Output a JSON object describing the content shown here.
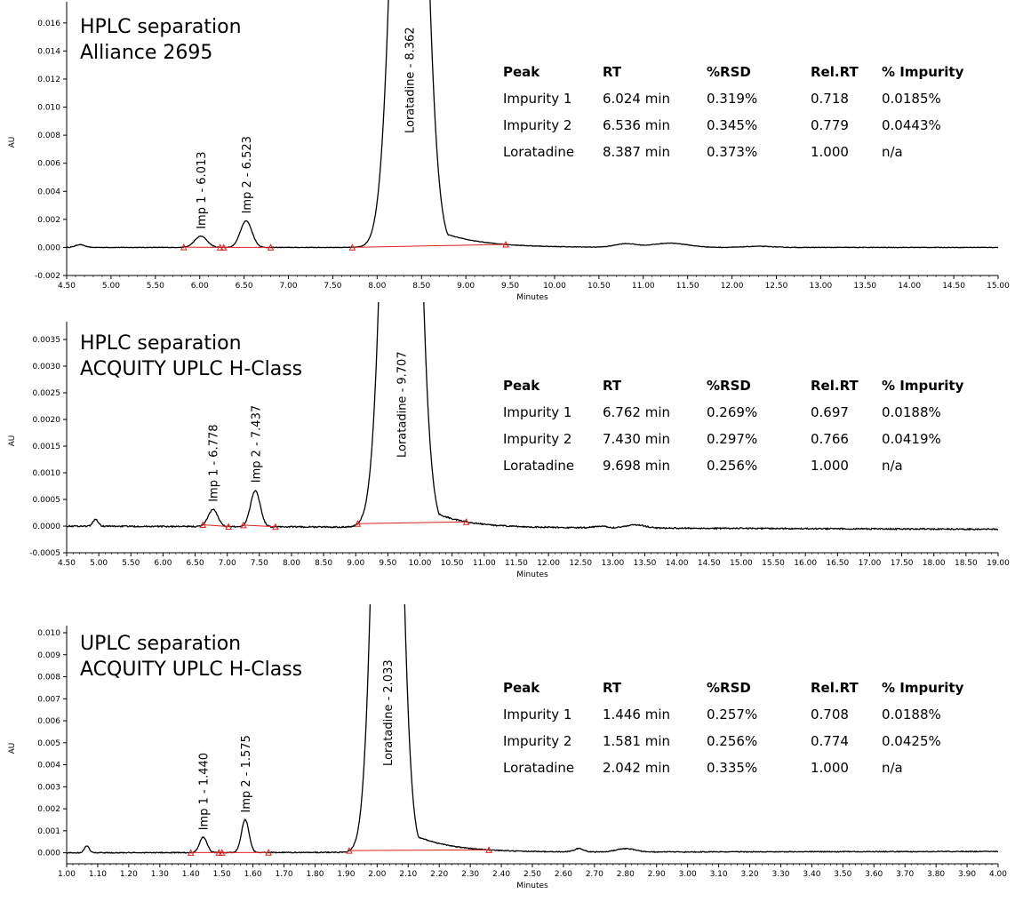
{
  "chart_data": [
    {
      "type": "line",
      "title_lines": [
        "HPLC separation",
        "Alliance 2695"
      ],
      "xlabel": "Minutes",
      "ylabel": "AU",
      "xlim": [
        4.5,
        15.0
      ],
      "ylim": [
        -0.002,
        0.017
      ],
      "x_ticks": [
        "4.50",
        "5.00",
        "5.50",
        "6.00",
        "6.50",
        "7.00",
        "7.50",
        "8.00",
        "8.50",
        "9.00",
        "9.50",
        "10.00",
        "10.50",
        "11.00",
        "11.50",
        "12.00",
        "12.50",
        "13.00",
        "13.50",
        "14.00",
        "14.50",
        "15.00"
      ],
      "y_ticks": [
        "-0.002",
        "0.000",
        "0.002",
        "0.004",
        "0.006",
        "0.008",
        "0.010",
        "0.012",
        "0.014",
        "0.016"
      ],
      "peaks": [
        {
          "label": "Imp 1 - 6.013",
          "rt": 6.013,
          "height": 0.0008,
          "width": 0.07
        },
        {
          "label": "Imp 2 - 6.523",
          "rt": 6.523,
          "height": 0.0019,
          "width": 0.065
        },
        {
          "label": "Loratadine - 8.362",
          "rt": 8.362,
          "height": 0.06,
          "width": 0.15,
          "tail": 0.45
        }
      ],
      "minor_peaks": [
        {
          "rt": 4.65,
          "height": 0.0002,
          "width": 0.05
        },
        {
          "rt": 10.8,
          "height": 0.00025,
          "width": 0.12
        },
        {
          "rt": 11.3,
          "height": 0.0003,
          "width": 0.2
        },
        {
          "rt": 12.3,
          "height": 8e-05,
          "width": 0.15
        }
      ],
      "baseline_drift": 0.0,
      "noise": 2e-05,
      "integration_segments": [
        [
          5.82,
          6.23
        ],
        [
          6.23,
          6.8
        ],
        [
          7.72,
          9.45
        ]
      ],
      "integration_markers": [
        5.82,
        6.23,
        6.27,
        6.8,
        7.72,
        9.45
      ],
      "table": {
        "headers": [
          "Peak",
          "RT",
          "%RSD",
          "Rel.RT",
          "% Impurity"
        ],
        "rows": [
          [
            "Impurity 1",
            "6.024 min",
            "0.319%",
            "0.718",
            "0.0185%"
          ],
          [
            "Impurity 2",
            "6.536 min",
            "0.345%",
            "0.779",
            "0.0443%"
          ],
          [
            "Loratadine",
            "8.387 min",
            "0.373%",
            "1.000",
            "n/a"
          ]
        ]
      }
    },
    {
      "type": "line",
      "title_lines": [
        "HPLC separation",
        "ACQUITY UPLC H-Class"
      ],
      "xlabel": "Minutes",
      "ylabel": "AU",
      "xlim": [
        4.5,
        19.0
      ],
      "ylim": [
        -0.0005,
        0.0037
      ],
      "x_ticks": [
        "4.50",
        "5.00",
        "5.50",
        "6.00",
        "6.50",
        "7.00",
        "7.50",
        "8.00",
        "8.50",
        "9.00",
        "9.50",
        "10.00",
        "10.50",
        "11.00",
        "11.50",
        "12.00",
        "12.50",
        "13.00",
        "13.50",
        "14.00",
        "14.50",
        "15.00",
        "15.50",
        "16.00",
        "16.50",
        "17.00",
        "17.50",
        "18.00",
        "18.50",
        "19.00"
      ],
      "y_ticks": [
        "-0.0005",
        "0.0000",
        "0.0005",
        "0.0010",
        "0.0015",
        "0.0020",
        "0.0025",
        "0.0030",
        "0.0035"
      ],
      "peaks": [
        {
          "label": "Imp 1 - 6.778",
          "rt": 6.778,
          "height": 0.00032,
          "width": 0.075
        },
        {
          "label": "Imp 2 - 7.437",
          "rt": 7.437,
          "height": 0.00068,
          "width": 0.075
        },
        {
          "label": "Loratadine - 9.707",
          "rt": 9.707,
          "height": 0.02,
          "width": 0.2,
          "tail": 0.5
        }
      ],
      "minor_peaks": [
        {
          "rt": 4.95,
          "height": 0.00013,
          "width": 0.04
        },
        {
          "rt": 12.8,
          "height": 3e-05,
          "width": 0.1
        },
        {
          "rt": 13.35,
          "height": 6e-05,
          "width": 0.15
        }
      ],
      "baseline_drift": -6e-05,
      "noise": 1.2e-05,
      "integration_segments": [
        [
          6.62,
          7.02
        ],
        [
          7.25,
          7.75
        ],
        [
          9.03,
          10.72
        ]
      ],
      "integration_markers": [
        6.62,
        7.02,
        7.25,
        7.75,
        9.03,
        10.72
      ],
      "table": {
        "headers": [
          "Peak",
          "RT",
          "%RSD",
          "Rel.RT",
          "% Impurity"
        ],
        "rows": [
          [
            "Impurity 1",
            "6.762 min",
            "0.269%",
            "0.697",
            "0.0188%"
          ],
          [
            "Impurity 2",
            "7.430 min",
            "0.297%",
            "0.766",
            "0.0419%"
          ],
          [
            "Loratadine",
            "9.698 min",
            "0.256%",
            "1.000",
            "n/a"
          ]
        ]
      }
    },
    {
      "type": "line",
      "title_lines": [
        "UPLC separation",
        "ACQUITY UPLC H-Class"
      ],
      "xlabel": "Minutes",
      "ylabel": "AU",
      "xlim": [
        1.0,
        4.0
      ],
      "ylim": [
        -0.0005,
        0.01
      ],
      "x_ticks": [
        "1.00",
        "1.10",
        "1.20",
        "1.30",
        "1.40",
        "1.50",
        "1.60",
        "1.70",
        "1.80",
        "1.90",
        "2.00",
        "2.10",
        "2.20",
        "2.30",
        "2.40",
        "2.50",
        "2.60",
        "2.70",
        "2.80",
        "2.90",
        "3.00",
        "3.10",
        "3.20",
        "3.30",
        "3.40",
        "3.50",
        "3.60",
        "3.70",
        "3.80",
        "3.90",
        "4.00"
      ],
      "y_ticks": [
        "0.000",
        "0.001",
        "0.002",
        "0.003",
        "0.004",
        "0.005",
        "0.006",
        "0.007",
        "0.008",
        "0.009",
        "0.010"
      ],
      "peaks": [
        {
          "label": "Imp 1 - 1.440",
          "rt": 1.44,
          "height": 0.0007,
          "width": 0.012
        },
        {
          "label": "Imp 2 - 1.575",
          "rt": 1.575,
          "height": 0.0015,
          "width": 0.012
        },
        {
          "label": "Loratadine - 2.033",
          "rt": 2.033,
          "height": 0.04,
          "width": 0.035,
          "tail": 0.12
        }
      ],
      "minor_peaks": [
        {
          "rt": 1.065,
          "height": 0.0003,
          "width": 0.008
        },
        {
          "rt": 2.65,
          "height": 0.00015,
          "width": 0.015
        },
        {
          "rt": 2.8,
          "height": 0.00015,
          "width": 0.03
        }
      ],
      "baseline_drift": 6e-05,
      "noise": 2e-05,
      "integration_segments": [
        [
          1.4,
          1.5
        ],
        [
          1.5,
          1.65
        ],
        [
          1.91,
          2.36
        ]
      ],
      "integration_markers": [
        1.4,
        1.49,
        1.5,
        1.65,
        1.91,
        2.36
      ],
      "table": {
        "headers": [
          "Peak",
          "RT",
          "%RSD",
          "Rel.RT",
          "% Impurity"
        ],
        "rows": [
          [
            "Impurity 1",
            "1.446 min",
            "0.257%",
            "0.708",
            "0.0188%"
          ],
          [
            "Impurity 2",
            "1.581 min",
            "0.256%",
            "0.774",
            "0.0425%"
          ],
          [
            "Loratadine",
            "2.042 min",
            "0.335%",
            "1.000",
            "n/a"
          ]
        ]
      }
    }
  ],
  "colors": {
    "trace": "#000000",
    "integration": "#e02020"
  }
}
